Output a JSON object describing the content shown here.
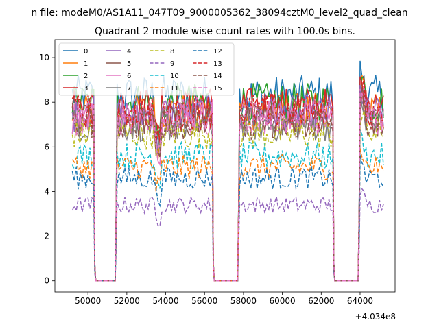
{
  "figure": {
    "suptitle": "n file: modeM0/AS1A11_047T09_9000005362_38094cztM0_level2_quad_clean",
    "title": "Quadrant 2 module wise count rates with 100.0s bins."
  },
  "chart_data": {
    "type": "line",
    "title": "Quadrant 2 module wise count rates with 100.0s bins.",
    "xlabel": "",
    "ylabel": "",
    "x_offset_label": "+4.034e8",
    "x_offset": 403400000,
    "xlim": [
      48300,
      65800
    ],
    "ylim": [
      -0.5,
      10.8
    ],
    "xticks": [
      50000,
      52000,
      54000,
      56000,
      58000,
      60000,
      62000,
      64000
    ],
    "yticks": [
      0,
      2,
      4,
      6,
      8,
      10
    ],
    "grid": false,
    "legend": {
      "placement": "top-left",
      "columns": 4
    },
    "segments": [
      {
        "x_start": 49200,
        "x_end": 50300
      },
      {
        "x_start": 51500,
        "x_end": 56400
      },
      {
        "x_start": 57800,
        "x_end": 62600
      },
      {
        "x_start": 64000,
        "x_end": 65200
      }
    ],
    "gaps_at_zero": [
      [
        50400,
        51400
      ],
      [
        56500,
        57700
      ],
      [
        62700,
        63900
      ]
    ],
    "series": [
      {
        "name": "0",
        "style": "solid",
        "color": "#1f77b4",
        "level": 8.3
      },
      {
        "name": "1",
        "style": "solid",
        "color": "#ff7f0e",
        "level": 7.6
      },
      {
        "name": "2",
        "style": "solid",
        "color": "#2ca02c",
        "level": 8.0
      },
      {
        "name": "3",
        "style": "solid",
        "color": "#d62728",
        "level": 7.8
      },
      {
        "name": "4",
        "style": "solid",
        "color": "#9467bd",
        "level": 7.5
      },
      {
        "name": "5",
        "style": "solid",
        "color": "#8c564b",
        "level": 7.2
      },
      {
        "name": "6",
        "style": "solid",
        "color": "#e377c2",
        "level": 7.3
      },
      {
        "name": "7",
        "style": "solid",
        "color": "#7f7f7f",
        "level": 7.0
      },
      {
        "name": "8",
        "style": "dashed",
        "color": "#bcbd22",
        "level": 6.6
      },
      {
        "name": "9",
        "style": "dashed",
        "color": "#9467bd",
        "level": 3.4
      },
      {
        "name": "10",
        "style": "dashed",
        "color": "#17becf",
        "level": 5.6
      },
      {
        "name": "11",
        "style": "dashed",
        "color": "#ff7f0e",
        "level": 5.1
      },
      {
        "name": "12",
        "style": "dashed",
        "color": "#1f77b4",
        "level": 4.6
      },
      {
        "name": "13",
        "style": "dashed",
        "color": "#d62728",
        "level": 7.6
      },
      {
        "name": "14",
        "style": "dashed",
        "color": "#8c564b",
        "level": 7.1
      },
      {
        "name": "15",
        "style": "dashed",
        "color": "#e377c2",
        "level": 7.4
      }
    ]
  }
}
